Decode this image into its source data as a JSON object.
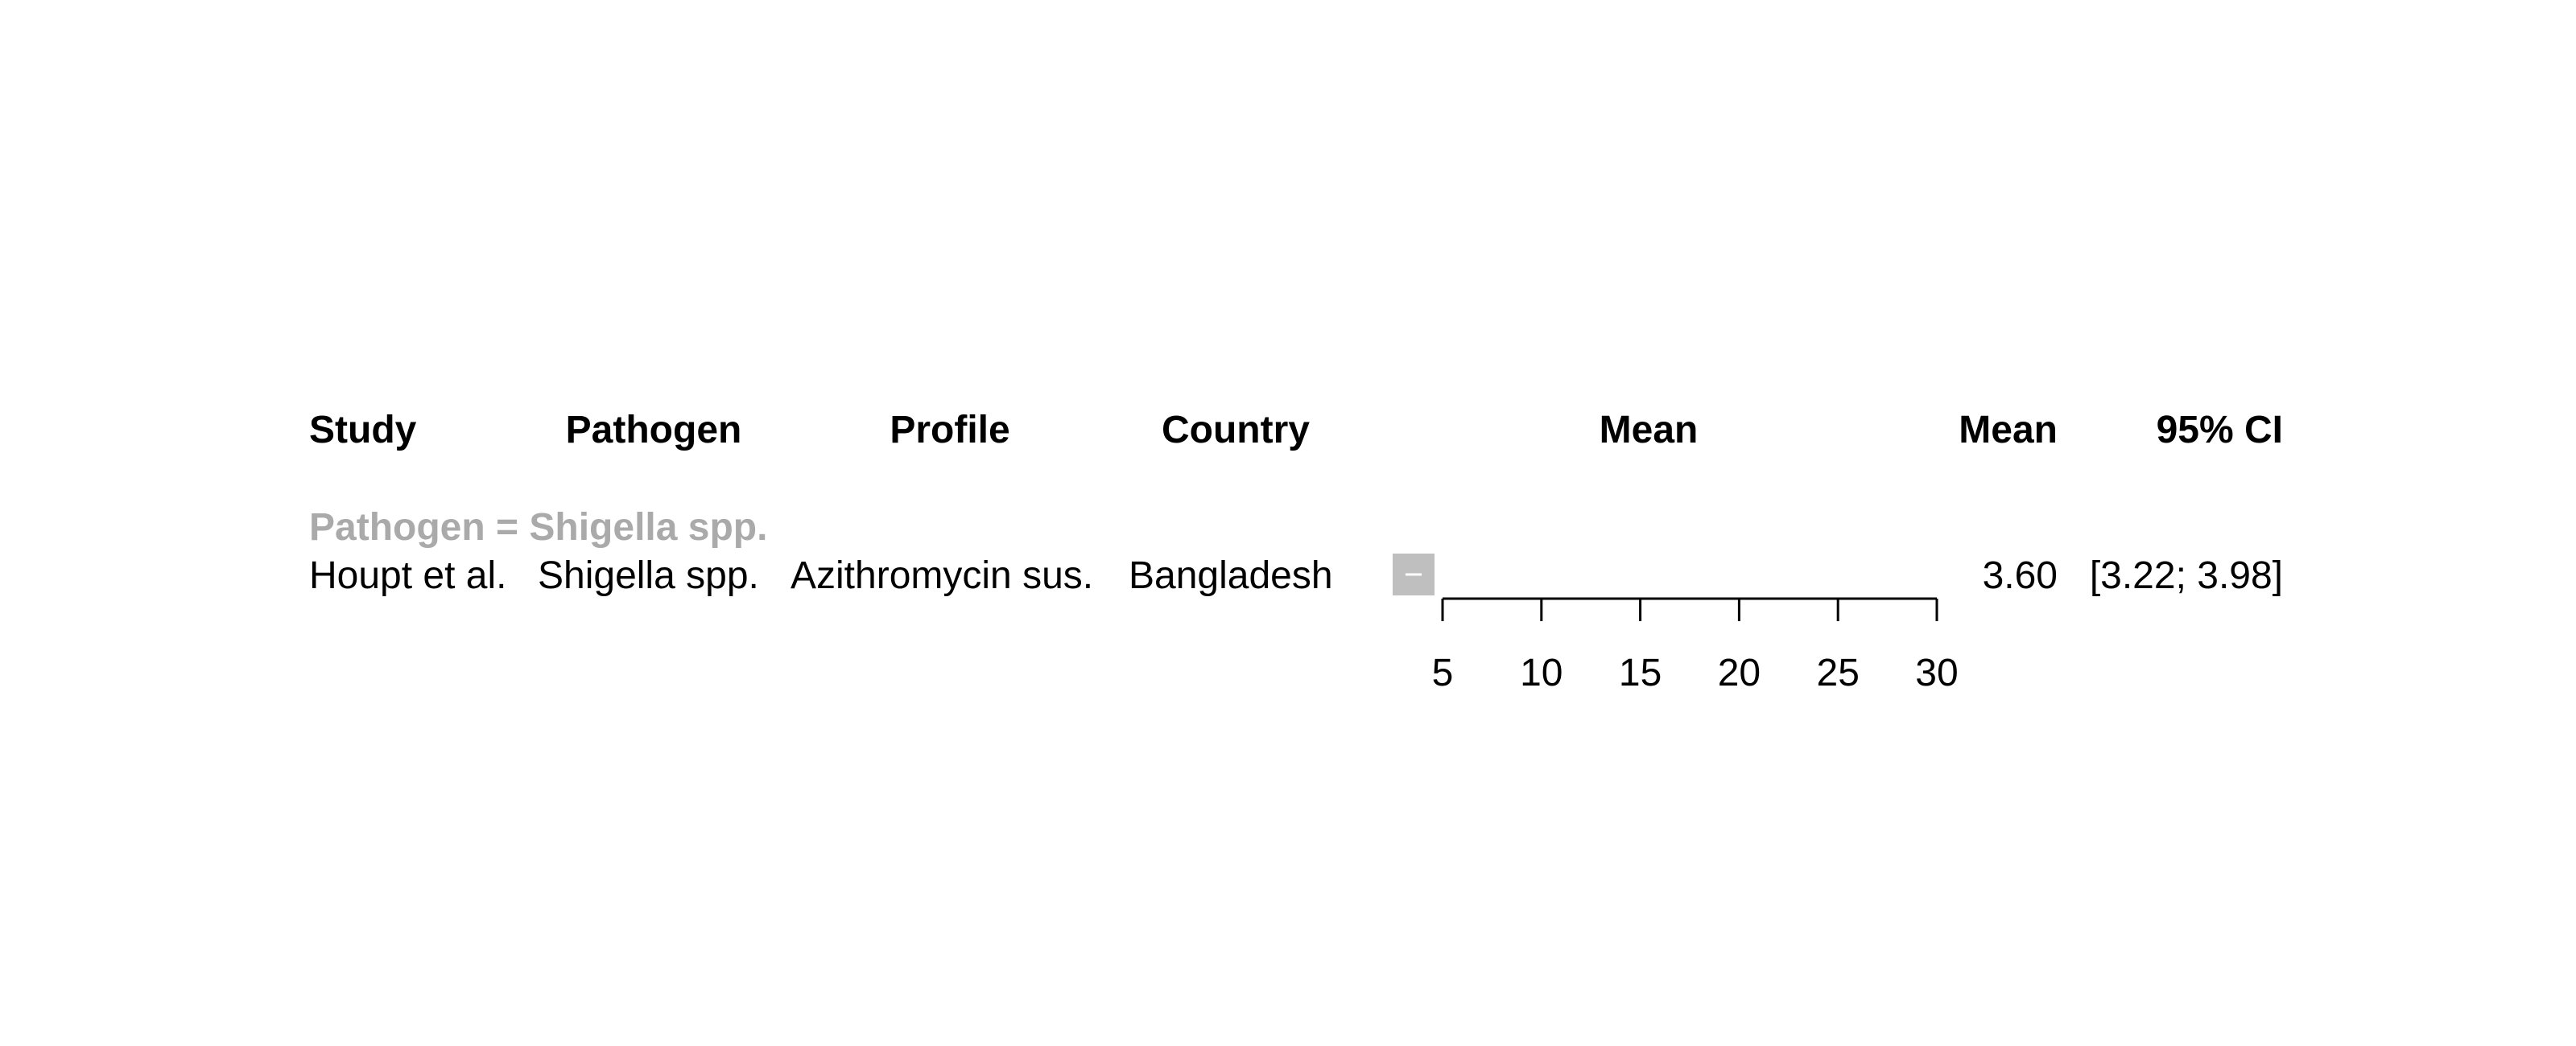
{
  "chart_data": {
    "type": "forest",
    "columns": {
      "study": "Study",
      "pathogen": "Pathogen",
      "profile": "Profile",
      "country": "Country",
      "plot": "Mean",
      "estimate": "Mean",
      "ci": "95% CI"
    },
    "groups": [
      {
        "label": "Pathogen = Shigella spp.",
        "rows": [
          {
            "study": "Houpt et al.",
            "pathogen": "Shigella spp.",
            "profile": "Azithromycin sus.",
            "country": "Bangladesh",
            "mean": 3.6,
            "ci_low": 3.22,
            "ci_high": 3.98,
            "mean_text": "3.60",
            "ci_text": "[3.22; 3.98]"
          }
        ]
      }
    ],
    "axis": {
      "xlim": [
        5,
        30
      ],
      "ticks": [
        5,
        10,
        15,
        20,
        25,
        30
      ],
      "tick_labels": [
        "5",
        "10",
        "15",
        "20",
        "25",
        "30"
      ]
    },
    "colors": {
      "text": "#000000",
      "group_label": "#aaaaaa",
      "study_square": "#bfbfbf",
      "ci_line": "#ffffff",
      "axis": "#000000"
    }
  }
}
